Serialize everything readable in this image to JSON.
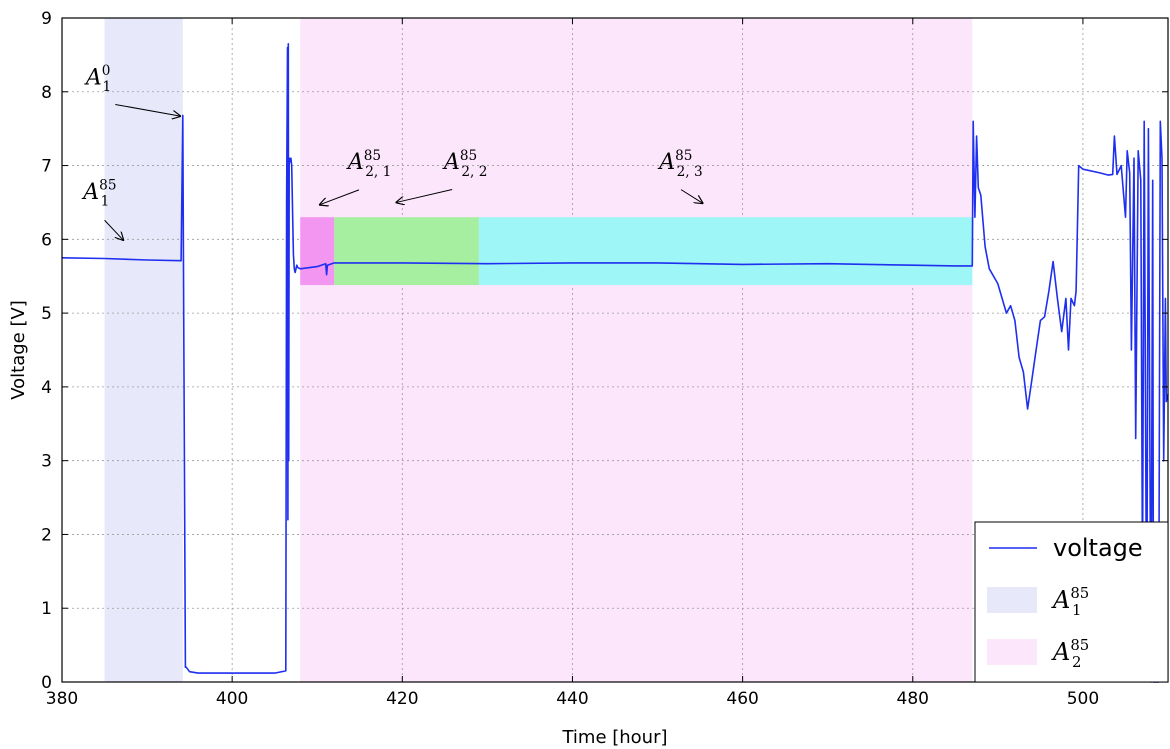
{
  "chart_data": {
    "type": "line",
    "title": "",
    "xlabel": "Time [hour]",
    "ylabel": "Voltage [V]",
    "xlim": [
      380,
      510
    ],
    "ylim": [
      0,
      9
    ],
    "xticks": [
      380,
      400,
      420,
      440,
      460,
      480,
      500
    ],
    "yticks": [
      0,
      1,
      2,
      3,
      4,
      5,
      6,
      7,
      8,
      9
    ],
    "grid": true,
    "legend_position": "lower-right",
    "colors": {
      "voltage": "#1f2ff0",
      "A1_85_span": "#e7e9fb",
      "A2_85_span": "#fbe6fb",
      "A21_box": "#f296f2",
      "A22_box": "#a6efa0",
      "A23_box": "#9ef6f6"
    },
    "legend": [
      {
        "label": "voltage",
        "kind": "line"
      },
      {
        "base": "A",
        "sub": "1",
        "sup": "85",
        "kind": "patch",
        "color_key": "A1_85_span"
      },
      {
        "base": "A",
        "sub": "2",
        "sup": "85",
        "kind": "patch",
        "color_key": "A2_85_span"
      }
    ],
    "spans": [
      {
        "x0": 385,
        "x1": 394.2,
        "color_key": "A1_85_span"
      },
      {
        "x0": 408,
        "x1": 487,
        "color_key": "A2_85_span"
      }
    ],
    "boxes": [
      {
        "x0": 408,
        "x1": 412,
        "y0": 5.38,
        "y1": 6.3,
        "color_key": "A21_box"
      },
      {
        "x0": 412,
        "x1": 429,
        "y0": 5.38,
        "y1": 6.3,
        "color_key": "A22_box"
      },
      {
        "x0": 429,
        "x1": 487,
        "y0": 5.38,
        "y1": 6.3,
        "color_key": "A23_box"
      }
    ],
    "annotations": [
      {
        "base": "A",
        "sub": "1",
        "sup": "0",
        "tx": 382.8,
        "ty": 8.1,
        "ax": 393.9,
        "ay": 7.67
      },
      {
        "base": "A",
        "sub": "1",
        "sup": "85",
        "tx": 382.5,
        "ty": 6.55,
        "ax": 387.2,
        "ay": 5.99
      },
      {
        "base": "A",
        "sub": "2, 1",
        "sup": "85",
        "tx": 413.6,
        "ty": 6.95,
        "ax": 410.3,
        "ay": 6.47
      },
      {
        "base": "A",
        "sub": "2, 2",
        "sup": "85",
        "tx": 424.9,
        "ty": 6.95,
        "ax": 419.3,
        "ay": 6.5
      },
      {
        "base": "A",
        "sub": "2, 3",
        "sup": "85",
        "tx": 450.2,
        "ty": 6.95,
        "ax": 455.3,
        "ay": 6.49
      }
    ],
    "series": [
      {
        "name": "voltage",
        "x": [
          380,
          385,
          390,
          394,
          394.2,
          394.3,
          394.5,
          394.6,
          395,
          396,
          398,
          400,
          403,
          405,
          406.3,
          406.4,
          406.5,
          406.55,
          406.6,
          406.65,
          406.7,
          406.8,
          406.9,
          407.0,
          407.2,
          407.3,
          407.4,
          407.5,
          407.6,
          407.7,
          408,
          410,
          411,
          411.1,
          411.2,
          412,
          420,
          430,
          440,
          450,
          460,
          470,
          480,
          485,
          487,
          487.1,
          487.3,
          487.5,
          487.7,
          488,
          488.5,
          489,
          490,
          490.5,
          491,
          491.5,
          492,
          492.5,
          493,
          493.5,
          494,
          494.5,
          495,
          495.5,
          496,
          496.5,
          497,
          497.5,
          498,
          498.3,
          498.6,
          499,
          499.2,
          499.5,
          500,
          502,
          503,
          503.5,
          503.7,
          504,
          504.5,
          505,
          505.2,
          505.5,
          505.7,
          506,
          506.2,
          506.5,
          506.8,
          507,
          507.2,
          507.5,
          507.7,
          508,
          508.2,
          508.3,
          508.5,
          508.7,
          508.9,
          509.1,
          509.3,
          509.5,
          509.7,
          509.8,
          510
        ],
        "y": [
          5.75,
          5.74,
          5.72,
          5.71,
          7.68,
          5.0,
          0.2,
          0.2,
          0.14,
          0.12,
          0.12,
          0.12,
          0.12,
          0.12,
          0.15,
          6.5,
          8.6,
          2.2,
          8.65,
          3.0,
          7.1,
          7.05,
          7.1,
          7.0,
          5.8,
          5.6,
          5.55,
          5.6,
          5.65,
          5.62,
          5.6,
          5.63,
          5.67,
          5.52,
          5.65,
          5.68,
          5.68,
          5.67,
          5.68,
          5.68,
          5.66,
          5.67,
          5.65,
          5.64,
          5.64,
          7.6,
          6.3,
          7.4,
          6.7,
          6.6,
          5.9,
          5.6,
          5.4,
          5.2,
          5.0,
          5.1,
          4.9,
          4.4,
          4.2,
          3.7,
          4.1,
          4.5,
          4.9,
          4.95,
          5.3,
          5.7,
          5.2,
          4.75,
          5.2,
          4.5,
          5.2,
          5.1,
          5.3,
          7.0,
          6.95,
          6.9,
          6.87,
          6.88,
          7.4,
          6.88,
          7.0,
          6.3,
          7.2,
          6.9,
          4.5,
          7.1,
          3.3,
          7.2,
          6.8,
          1.4,
          7.6,
          0.3,
          7.5,
          0.0,
          6.8,
          0.0,
          0.0,
          0.0,
          0.0,
          7.6,
          7.1,
          3.0,
          5.2,
          3.8,
          3.9
        ]
      }
    ]
  }
}
